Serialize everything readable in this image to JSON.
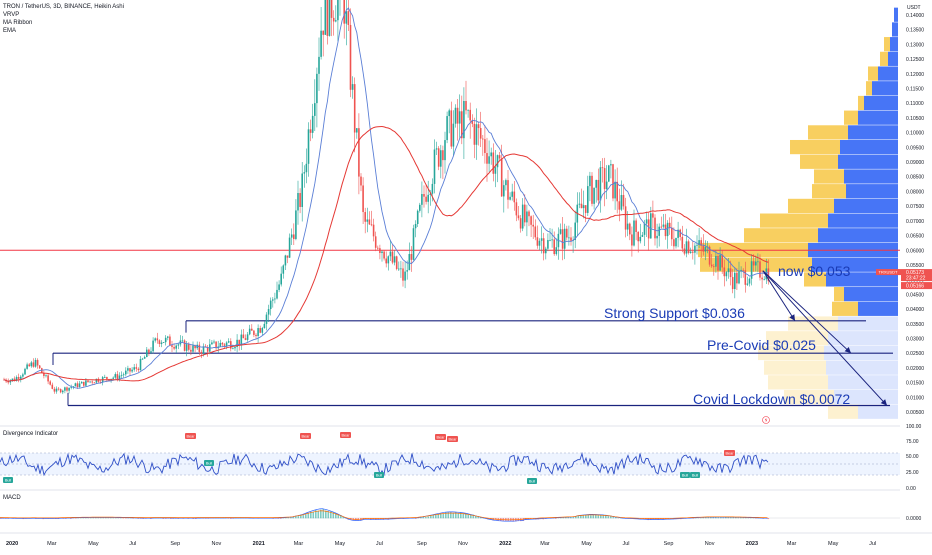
{
  "header": {
    "symbol_line": "TRON / TetherUS, 3D, BINANCE, Heikin Ashi",
    "indicators": [
      "VRVP",
      "MA Ribbon",
      "EMA"
    ]
  },
  "axis": {
    "currency": "USDT",
    "price_ticks": [
      "0.14000",
      "0.13500",
      "0.13000",
      "0.12500",
      "0.12000",
      "0.11500",
      "0.11000",
      "0.10500",
      "0.10000",
      "0.09500",
      "0.09000",
      "0.08500",
      "0.08000",
      "0.07500",
      "0.07000",
      "0.06500",
      "0.06000",
      "0.05500",
      "0.05000",
      "0.04500",
      "0.04000",
      "0.03500",
      "0.03000",
      "0.02500",
      "0.02000",
      "0.01500",
      "0.01000",
      "0.00500"
    ],
    "osc_ticks": [
      "100.00",
      "75.00",
      "50.00",
      "25.00",
      "0.00"
    ],
    "macd_ticks": [
      "0.0000"
    ],
    "time_ticks": [
      "2020",
      "Mar",
      "May",
      "Jul",
      "Sep",
      "Nov",
      "2021",
      "Mar",
      "May",
      "Jul",
      "Sep",
      "Nov",
      "2022",
      "Mar",
      "May",
      "Jul",
      "Sep",
      "Nov",
      "2023",
      "Mar",
      "May",
      "Jul"
    ]
  },
  "last_price": {
    "label": "TRXUSDT",
    "price": "0.05173",
    "countdown": "23:47:22",
    "second": "0.05166"
  },
  "annotations": {
    "now": "now $0.053",
    "support": "Strong Support $0.036",
    "precovid": "Pre-Covid $0.025",
    "lockdown": "Covid Lockdown $0.0072"
  },
  "panes": {
    "oscillator": "Divergence Indicator",
    "macd": "MACD"
  },
  "labels": {
    "bull": "Bull",
    "bear": "Bear"
  },
  "colors": {
    "up": "#26a69a",
    "down": "#ef5350",
    "ma": "#5b7fd6",
    "ema": "#e53935",
    "hline": "#1a237e",
    "resistance": "#f23645",
    "text_blue": "#1a3bb5",
    "vol_up": "#3d6ef5",
    "vol_down": "#f7c744",
    "osc": "#2f4fc7"
  },
  "chart_data": {
    "type": "candlestick",
    "title": "TRON / TetherUS, 3D, BINANCE, Heikin Ashi",
    "y_range": [
      0.005,
      0.14
    ],
    "x_range": [
      "2020-01",
      "2023-08"
    ],
    "price_path": [
      [
        "2020-01",
        0.016
      ],
      [
        "2020-02",
        0.022
      ],
      [
        "2020-03",
        0.012
      ],
      [
        "2020-04",
        0.014
      ],
      [
        "2020-05",
        0.016
      ],
      [
        "2020-06",
        0.017
      ],
      [
        "2020-07",
        0.02
      ],
      [
        "2020-08",
        0.03
      ],
      [
        "2020-09",
        0.028
      ],
      [
        "2020-10",
        0.026
      ],
      [
        "2020-11",
        0.028
      ],
      [
        "2020-12",
        0.029
      ],
      [
        "2021-01",
        0.034
      ],
      [
        "2021-02",
        0.05
      ],
      [
        "2021-03",
        0.08
      ],
      [
        "2021-04",
        0.14
      ],
      [
        "2021-05",
        0.15
      ],
      [
        "2021-06",
        0.07
      ],
      [
        "2021-07",
        0.06
      ],
      [
        "2021-08",
        0.05
      ],
      [
        "2021-09",
        0.08
      ],
      [
        "2021-10",
        0.1
      ],
      [
        "2021-11",
        0.105
      ],
      [
        "2021-12",
        0.095
      ],
      [
        "2022-01",
        0.08
      ],
      [
        "2022-02",
        0.068
      ],
      [
        "2022-03",
        0.062
      ],
      [
        "2022-04",
        0.065
      ],
      [
        "2022-05",
        0.08
      ],
      [
        "2022-06",
        0.085
      ],
      [
        "2022-07",
        0.066
      ],
      [
        "2022-08",
        0.068
      ],
      [
        "2022-09",
        0.065
      ],
      [
        "2022-10",
        0.062
      ],
      [
        "2022-11",
        0.058
      ],
      [
        "2022-12",
        0.05
      ],
      [
        "2023-01",
        0.053
      ]
    ],
    "horizontal_levels": [
      {
        "label": "Strong Support $0.036",
        "value": 0.036
      },
      {
        "label": "Pre-Covid $0.025",
        "value": 0.025
      },
      {
        "label": "Covid Lockdown $0.0072",
        "value": 0.0072
      },
      {
        "value": 0.06
      }
    ],
    "oscillator_range": [
      0,
      100
    ],
    "oscillator_levels": [
      25,
      50,
      75
    ]
  }
}
